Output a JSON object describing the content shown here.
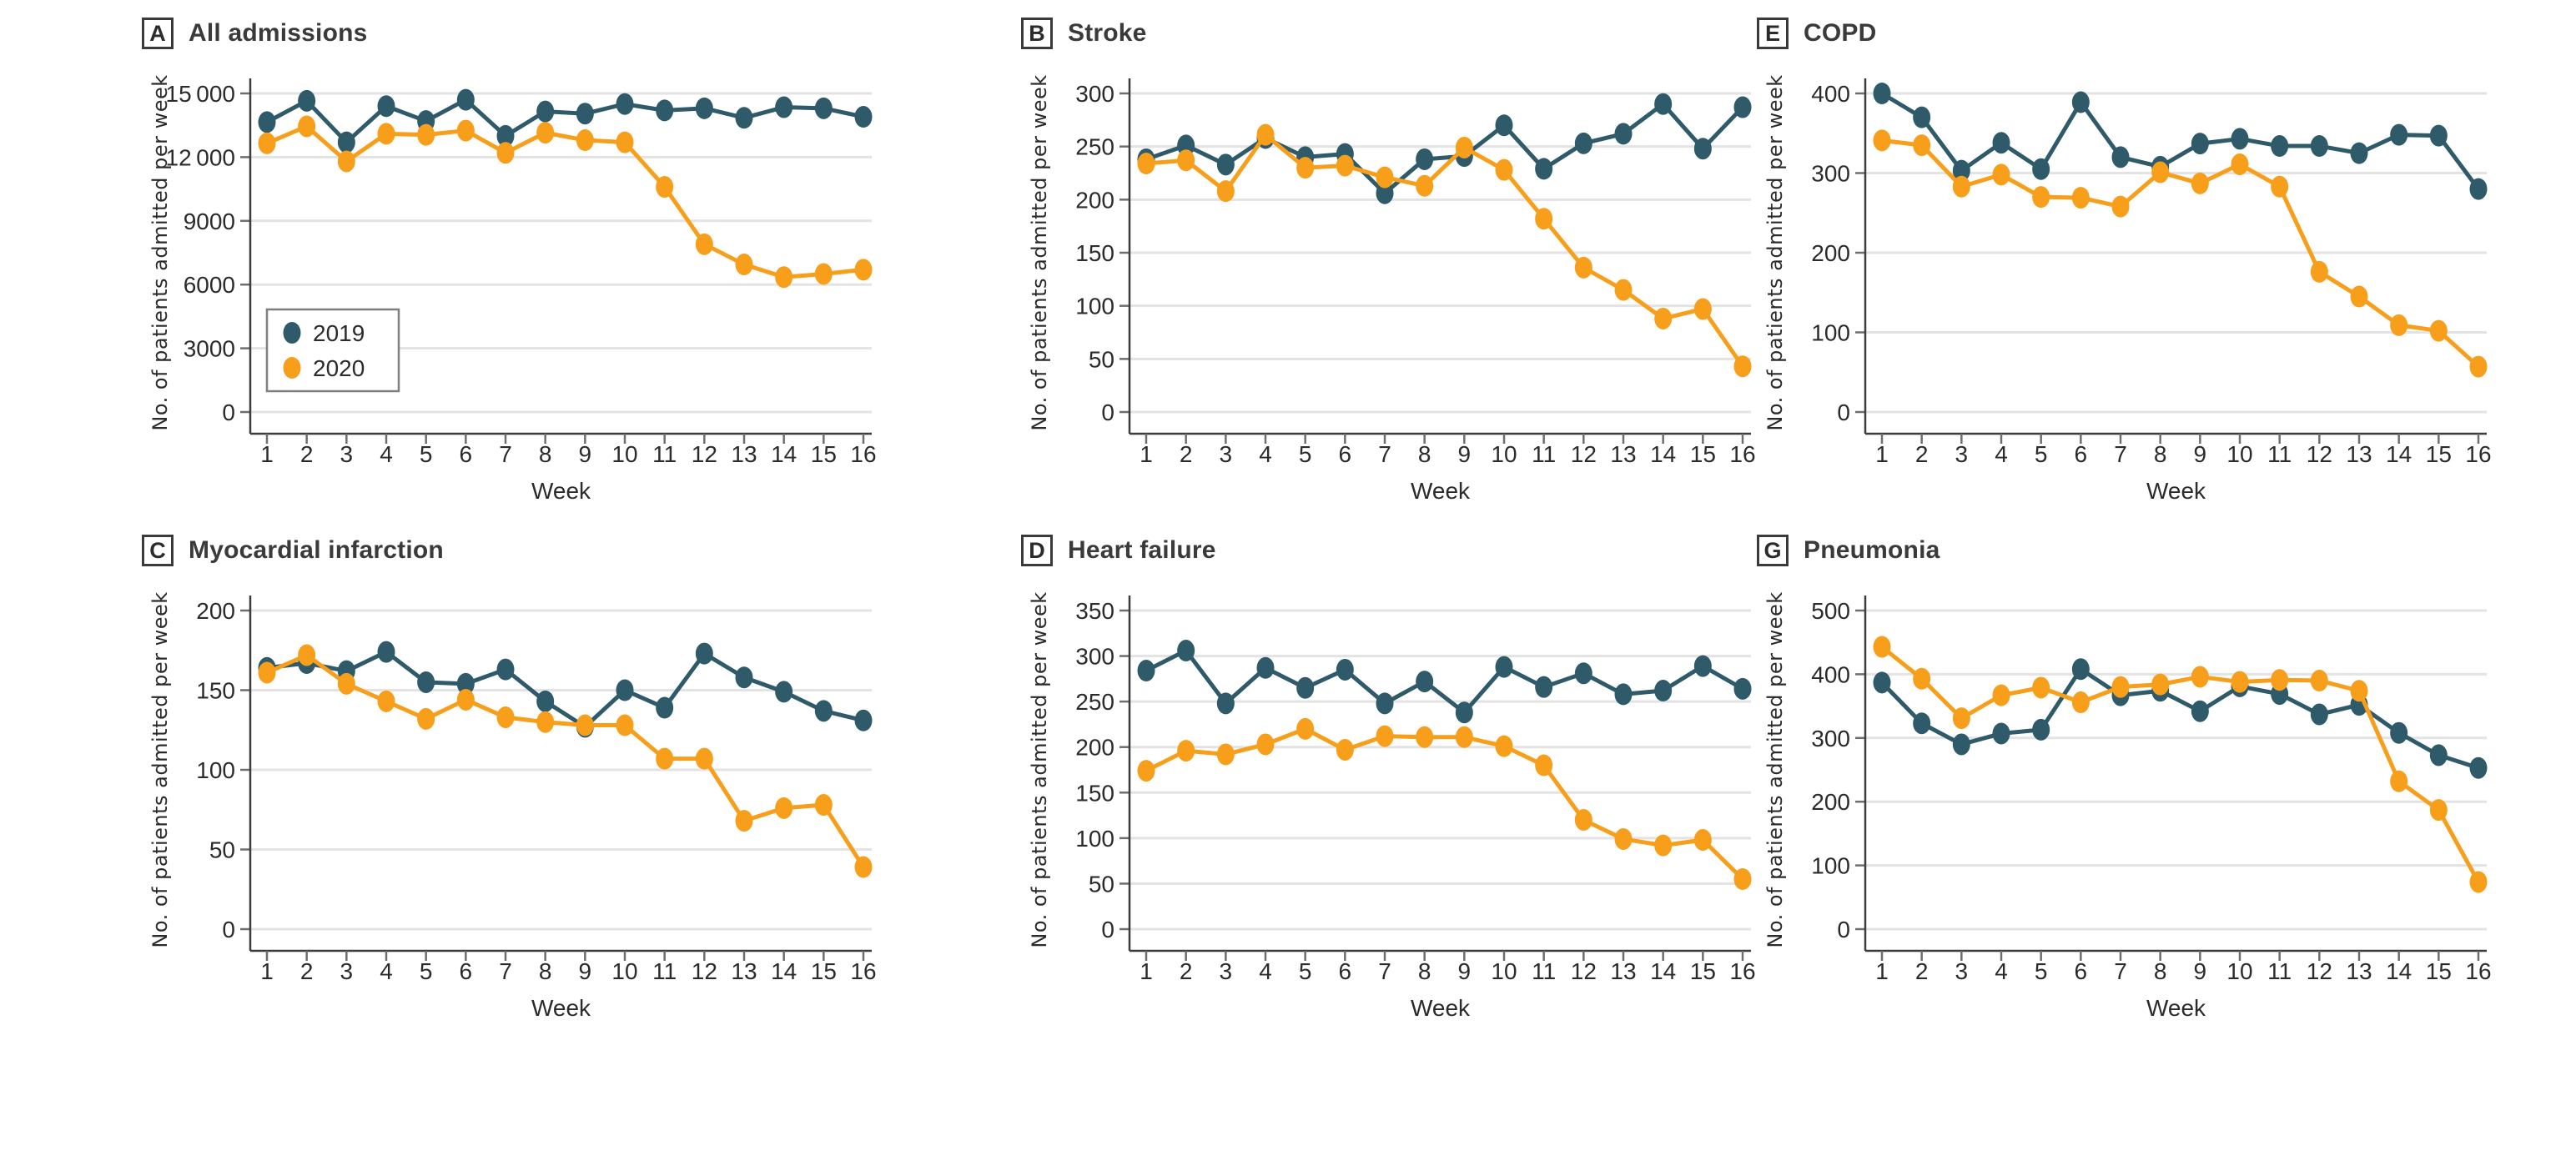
{
  "figure": {
    "background": "#ffffff",
    "xlabel": "Week",
    "ylabel": "No. of patients admitted per week",
    "weeks": [
      1,
      2,
      3,
      4,
      5,
      6,
      7,
      8,
      9,
      10,
      11,
      12,
      13,
      14,
      15,
      16
    ]
  },
  "colors": {
    "series_2019": "#2E5A6A",
    "series_2020": "#F79E1B",
    "grid": "#E3E3E3",
    "axis": "#3c3c3c",
    "tick": "#6e6e6e",
    "text": "#2b2b2b",
    "legend_border": "#7f7f7f",
    "legend_fill": "#ffffff"
  },
  "legend": {
    "location": "panel A, inside lower-left",
    "items": [
      {
        "label": "2019",
        "color_key": "series_2019"
      },
      {
        "label": "2020",
        "color_key": "series_2020"
      }
    ]
  },
  "chart_data": [
    {
      "panel": "A",
      "title": "All admissions",
      "type": "line",
      "xlabel": "Week",
      "ylabel": "No. of patients admitted per week",
      "x": [
        1,
        2,
        3,
        4,
        5,
        6,
        7,
        8,
        9,
        10,
        11,
        12,
        13,
        14,
        15,
        16
      ],
      "ylim": [
        0,
        15000
      ],
      "yticks": [
        0,
        3000,
        6000,
        9000,
        12000,
        15000
      ],
      "ytick_labels": [
        "0",
        "3000",
        "6000",
        "9000",
        "12 000",
        "15 000"
      ],
      "grid": true,
      "legend": true,
      "series": [
        {
          "name": "2019",
          "color_key": "series_2019",
          "values": [
            13650,
            14650,
            12700,
            14400,
            13700,
            14700,
            13000,
            14150,
            14050,
            14500,
            14200,
            14300,
            13850,
            14350,
            14300,
            13900
          ]
        },
        {
          "name": "2020",
          "color_key": "series_2020",
          "values": [
            12650,
            13450,
            11800,
            13100,
            13050,
            13250,
            12200,
            13150,
            12800,
            12700,
            10600,
            7900,
            6950,
            6350,
            6500,
            6700
          ]
        }
      ]
    },
    {
      "panel": "B",
      "title": "Stroke",
      "type": "line",
      "xlabel": "Week",
      "ylabel": "No. of patients admitted per week",
      "x": [
        1,
        2,
        3,
        4,
        5,
        6,
        7,
        8,
        9,
        10,
        11,
        12,
        13,
        14,
        15,
        16
      ],
      "ylim": [
        0,
        300
      ],
      "yticks": [
        0,
        50,
        100,
        150,
        200,
        250,
        300
      ],
      "ytick_labels": [
        "0",
        "50",
        "100",
        "150",
        "200",
        "250",
        "300"
      ],
      "grid": true,
      "legend": false,
      "series": [
        {
          "name": "2019",
          "color_key": "series_2019",
          "values": [
            238,
            251,
            233,
            258,
            240,
            243,
            206,
            238,
            241,
            270,
            229,
            253,
            262,
            290,
            248,
            287
          ]
        },
        {
          "name": "2020",
          "color_key": "series_2020",
          "values": [
            234,
            237,
            208,
            261,
            230,
            232,
            221,
            213,
            249,
            228,
            182,
            136,
            115,
            88,
            97,
            43
          ]
        }
      ]
    },
    {
      "panel": "E",
      "title": "COPD",
      "type": "line",
      "xlabel": "Week",
      "ylabel": "No. of patients admitted per week",
      "x": [
        1,
        2,
        3,
        4,
        5,
        6,
        7,
        8,
        9,
        10,
        11,
        12,
        13,
        14,
        15,
        16
      ],
      "ylim": [
        0,
        400
      ],
      "yticks": [
        0,
        100,
        200,
        300,
        400
      ],
      "ytick_labels": [
        "0",
        "100",
        "200",
        "300",
        "400"
      ],
      "grid": true,
      "legend": false,
      "series": [
        {
          "name": "2019",
          "color_key": "series_2019",
          "values": [
            400,
            370,
            303,
            338,
            305,
            389,
            320,
            308,
            337,
            343,
            334,
            334,
            325,
            348,
            347,
            280
          ]
        },
        {
          "name": "2020",
          "color_key": "series_2020",
          "values": [
            341,
            335,
            283,
            298,
            270,
            269,
            258,
            301,
            287,
            311,
            283,
            176,
            145,
            109,
            102,
            57
          ]
        }
      ]
    },
    {
      "panel": "C",
      "title": "Myocardial infarction",
      "type": "line",
      "xlabel": "Week",
      "ylabel": "No. of patients admitted per week",
      "x": [
        1,
        2,
        3,
        4,
        5,
        6,
        7,
        8,
        9,
        10,
        11,
        12,
        13,
        14,
        15,
        16
      ],
      "ylim": [
        0,
        200
      ],
      "yticks": [
        0,
        50,
        100,
        150,
        200
      ],
      "ytick_labels": [
        "0",
        "50",
        "100",
        "150",
        "200"
      ],
      "grid": true,
      "legend": false,
      "series": [
        {
          "name": "2019",
          "color_key": "series_2019",
          "values": [
            164,
            167,
            162,
            174,
            155,
            154,
            163,
            143,
            127,
            150,
            139,
            173,
            158,
            149,
            137,
            131
          ]
        },
        {
          "name": "2020",
          "color_key": "series_2020",
          "values": [
            161,
            172,
            154,
            143,
            132,
            144,
            133,
            130,
            128,
            128,
            107,
            107,
            68,
            76,
            78,
            39
          ]
        }
      ]
    },
    {
      "panel": "D",
      "title": "Heart failure",
      "type": "line",
      "xlabel": "Week",
      "ylabel": "No. of patients admitted per week",
      "x": [
        1,
        2,
        3,
        4,
        5,
        6,
        7,
        8,
        9,
        10,
        11,
        12,
        13,
        14,
        15,
        16
      ],
      "ylim": [
        0,
        350
      ],
      "yticks": [
        0,
        50,
        100,
        150,
        200,
        250,
        300,
        350
      ],
      "ytick_labels": [
        "0",
        "50",
        "100",
        "150",
        "200",
        "250",
        "300",
        "350"
      ],
      "grid": true,
      "legend": false,
      "series": [
        {
          "name": "2019",
          "color_key": "series_2019",
          "values": [
            284,
            306,
            248,
            287,
            265,
            285,
            248,
            272,
            238,
            288,
            266,
            281,
            258,
            262,
            289,
            264
          ]
        },
        {
          "name": "2020",
          "color_key": "series_2020",
          "values": [
            174,
            196,
            192,
            203,
            220,
            197,
            212,
            211,
            211,
            201,
            180,
            120,
            99,
            92,
            98,
            55
          ]
        }
      ]
    },
    {
      "panel": "G",
      "title": "Pneumonia",
      "type": "line",
      "xlabel": "Week",
      "ylabel": "No. of patients admitted per week",
      "x": [
        1,
        2,
        3,
        4,
        5,
        6,
        7,
        8,
        9,
        10,
        11,
        12,
        13,
        14,
        15,
        16
      ],
      "ylim": [
        0,
        500
      ],
      "yticks": [
        0,
        100,
        200,
        300,
        400,
        500
      ],
      "ytick_labels": [
        "0",
        "100",
        "200",
        "300",
        "400",
        "500"
      ],
      "grid": true,
      "legend": false,
      "series": [
        {
          "name": "2019",
          "color_key": "series_2019",
          "values": [
            387,
            323,
            290,
            307,
            313,
            408,
            367,
            374,
            342,
            381,
            369,
            337,
            352,
            308,
            273,
            253
          ]
        },
        {
          "name": "2020",
          "color_key": "series_2020",
          "values": [
            443,
            393,
            331,
            367,
            379,
            356,
            380,
            384,
            396,
            388,
            391,
            390,
            374,
            232,
            187,
            74
          ]
        }
      ]
    }
  ]
}
